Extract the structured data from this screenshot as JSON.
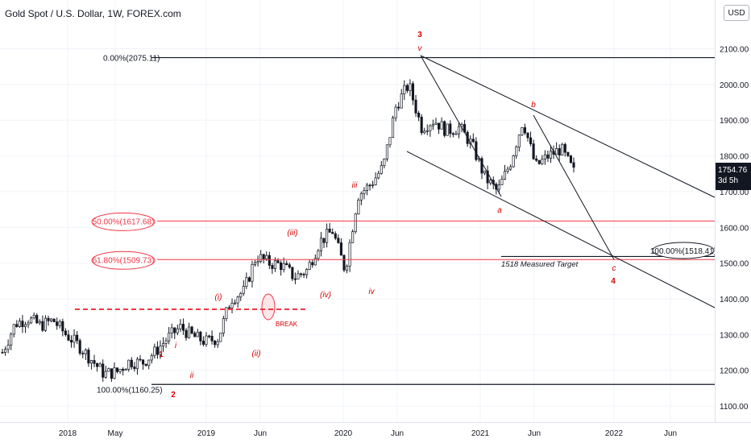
{
  "header": {
    "title": "Gold Spot / U.S. Dollar, 1W, FOREX.com"
  },
  "axis": {
    "currency_button": "USD",
    "y_ticks": [
      "2100.00",
      "2000.00",
      "1900.00",
      "1800.00",
      "1700.00",
      "1600.00",
      "1500.00",
      "1400.00",
      "1300.00",
      "1200.00",
      "1100.00"
    ],
    "x_ticks": [
      "2018",
      "May",
      "2019",
      "Jun",
      "2020",
      "Jun",
      "2021",
      "Jun",
      "2022",
      "Jun"
    ]
  },
  "last_price": {
    "value": "1754.76",
    "countdown": "3d 5h"
  },
  "fib_levels": {
    "top": "0.00%(2075.11)",
    "fib50": "50.00%(1617.68)",
    "fib618": "61.80%(1509.73)",
    "bottom": "100.00%(1160.25)",
    "target": "100.00%(1518.41)"
  },
  "annotations": {
    "target_text": "1518 Measured Target",
    "break_text": "BREAK",
    "wave_3": "3",
    "wave_v": "v",
    "wave_b": "b",
    "wave_a": "a",
    "wave_c": "c",
    "wave_4": "4",
    "wave_iii_small": "iii",
    "wave_iv_small": "iv",
    "wave_iii_paren": "(iii)",
    "wave_iv_paren": "(iv)",
    "wave_i_paren": "(i)",
    "wave_ii_paren": "(ii)",
    "wave_1": "1",
    "wave_2": "2",
    "wave_i_small": "i",
    "wave_ii_small": "ii"
  },
  "colors": {
    "up": "#131722",
    "down": "#131722",
    "fib_line": "#f23645",
    "label_red": "#d50000",
    "black_line": "#131722",
    "grid": "#f0f3fa"
  },
  "chart_data": {
    "type": "candlestick",
    "title": "Gold Spot / U.S. Dollar, 1W, FOREX.com",
    "ylim": [
      1070,
      2170
    ],
    "x": [
      "2017-12",
      "2018-01",
      "2018-02",
      "2018-03",
      "2018-04",
      "2018-05",
      "2018-06",
      "2018-07",
      "2018-08",
      "2018-09",
      "2018-10",
      "2018-11",
      "2018-12",
      "2019-01",
      "2019-02",
      "2019-03",
      "2019-04",
      "2019-05",
      "2019-06",
      "2019-07",
      "2019-08",
      "2019-09",
      "2019-10",
      "2019-11",
      "2019-12",
      "2020-01",
      "2020-02",
      "2020-03",
      "2020-04",
      "2020-05",
      "2020-06",
      "2020-07",
      "2020-08",
      "2020-09",
      "2020-10",
      "2020-11",
      "2020-12",
      "2021-01",
      "2021-02",
      "2021-03",
      "2021-04",
      "2021-05",
      "2021-06",
      "2021-07",
      "2021-08",
      "2021-09"
    ],
    "close_path": [
      1250,
      1330,
      1345,
      1325,
      1340,
      1300,
      1270,
      1230,
      1190,
      1195,
      1225,
      1220,
      1250,
      1290,
      1320,
      1295,
      1280,
      1290,
      1400,
      1420,
      1520,
      1500,
      1495,
      1460,
      1480,
      1560,
      1590,
      1480,
      1690,
      1720,
      1770,
      1940,
      2000,
      1880,
      1900,
      1870,
      1880,
      1830,
      1740,
      1700,
      1780,
      1900,
      1770,
      1800,
      1820,
      1755
    ],
    "series": [
      {
        "name": "Gold Spot / U.S. Dollar",
        "last": 1754.76
      }
    ],
    "horizontal_levels": [
      2075.11,
      1617.68,
      1509.73,
      1518.41,
      1160.25,
      1370
    ],
    "fib_labels": [
      "0.00%(2075.11)",
      "50.00%(1617.68)",
      "61.80%(1509.73)",
      "100.00%(1160.25)",
      "100.00%(1518.41)"
    ]
  }
}
